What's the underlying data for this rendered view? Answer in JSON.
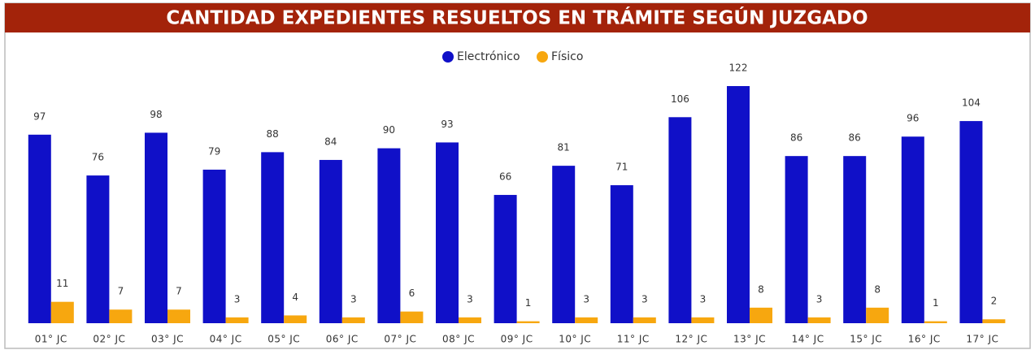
{
  "chart_data": {
    "type": "bar",
    "title": "CANTIDAD EXPEDIENTES RESUELTOS EN TRÁMITE SEGÚN JUZGADO",
    "categories": [
      "01° JC",
      "02° JC",
      "03° JC",
      "04° JC",
      "05° JC",
      "06° JC",
      "07° JC",
      "08° JC",
      "09° JC",
      "10° JC",
      "11° JC",
      "12° JC",
      "13° JC",
      "14° JC",
      "15° JC",
      "16° JC",
      "17° JC"
    ],
    "series": [
      {
        "name": "Electrónico",
        "color": "#1010c8",
        "values": [
          97,
          76,
          98,
          79,
          88,
          84,
          90,
          93,
          66,
          81,
          71,
          106,
          122,
          86,
          86,
          96,
          104
        ]
      },
      {
        "name": "Físico",
        "color": "#f7a70f",
        "values": [
          11,
          7,
          7,
          3,
          4,
          3,
          6,
          3,
          1,
          3,
          3,
          3,
          8,
          3,
          8,
          1,
          2
        ]
      }
    ]
  }
}
